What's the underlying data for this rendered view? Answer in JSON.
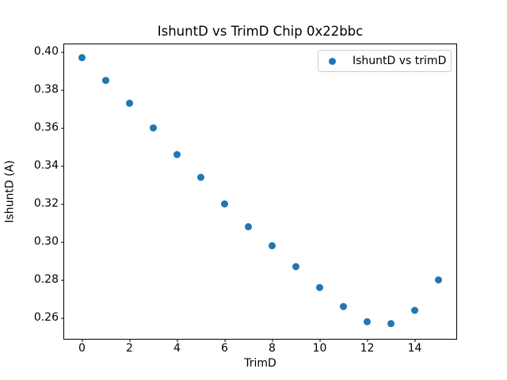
{
  "figure": {
    "background": "#ffffff",
    "axis_color": "#000000",
    "text_color": "#000000",
    "legend_border_color": "#cccccc"
  },
  "chart_data": {
    "type": "scatter",
    "title": "IshuntD vs TrimD Chip 0x22bbc",
    "xlabel": "TrimD",
    "ylabel": "IshuntD (A)",
    "legend": {
      "position": "upper right",
      "entries": [
        "IshuntD vs trimD"
      ]
    },
    "marker": {
      "shape": "circle",
      "color": "#1f77b4"
    },
    "x": [
      0,
      1,
      2,
      3,
      4,
      5,
      6,
      7,
      8,
      9,
      10,
      11,
      12,
      13,
      14,
      15
    ],
    "y": [
      0.397,
      0.385,
      0.373,
      0.36,
      0.346,
      0.334,
      0.32,
      0.308,
      0.298,
      0.287,
      0.276,
      0.266,
      0.258,
      0.257,
      0.264,
      0.28
    ],
    "xlim": [
      -0.75,
      15.75
    ],
    "ylim": [
      0.249,
      0.404
    ],
    "xticks": [
      0,
      2,
      4,
      6,
      8,
      10,
      12,
      14
    ],
    "xtick_labels": [
      "0",
      "2",
      "4",
      "6",
      "8",
      "10",
      "12",
      "14"
    ],
    "yticks": [
      0.26,
      0.28,
      0.3,
      0.32,
      0.34,
      0.36,
      0.38,
      0.4
    ],
    "ytick_labels": [
      "0.26",
      "0.28",
      "0.30",
      "0.32",
      "0.34",
      "0.36",
      "0.38",
      "0.40"
    ],
    "grid": false
  }
}
